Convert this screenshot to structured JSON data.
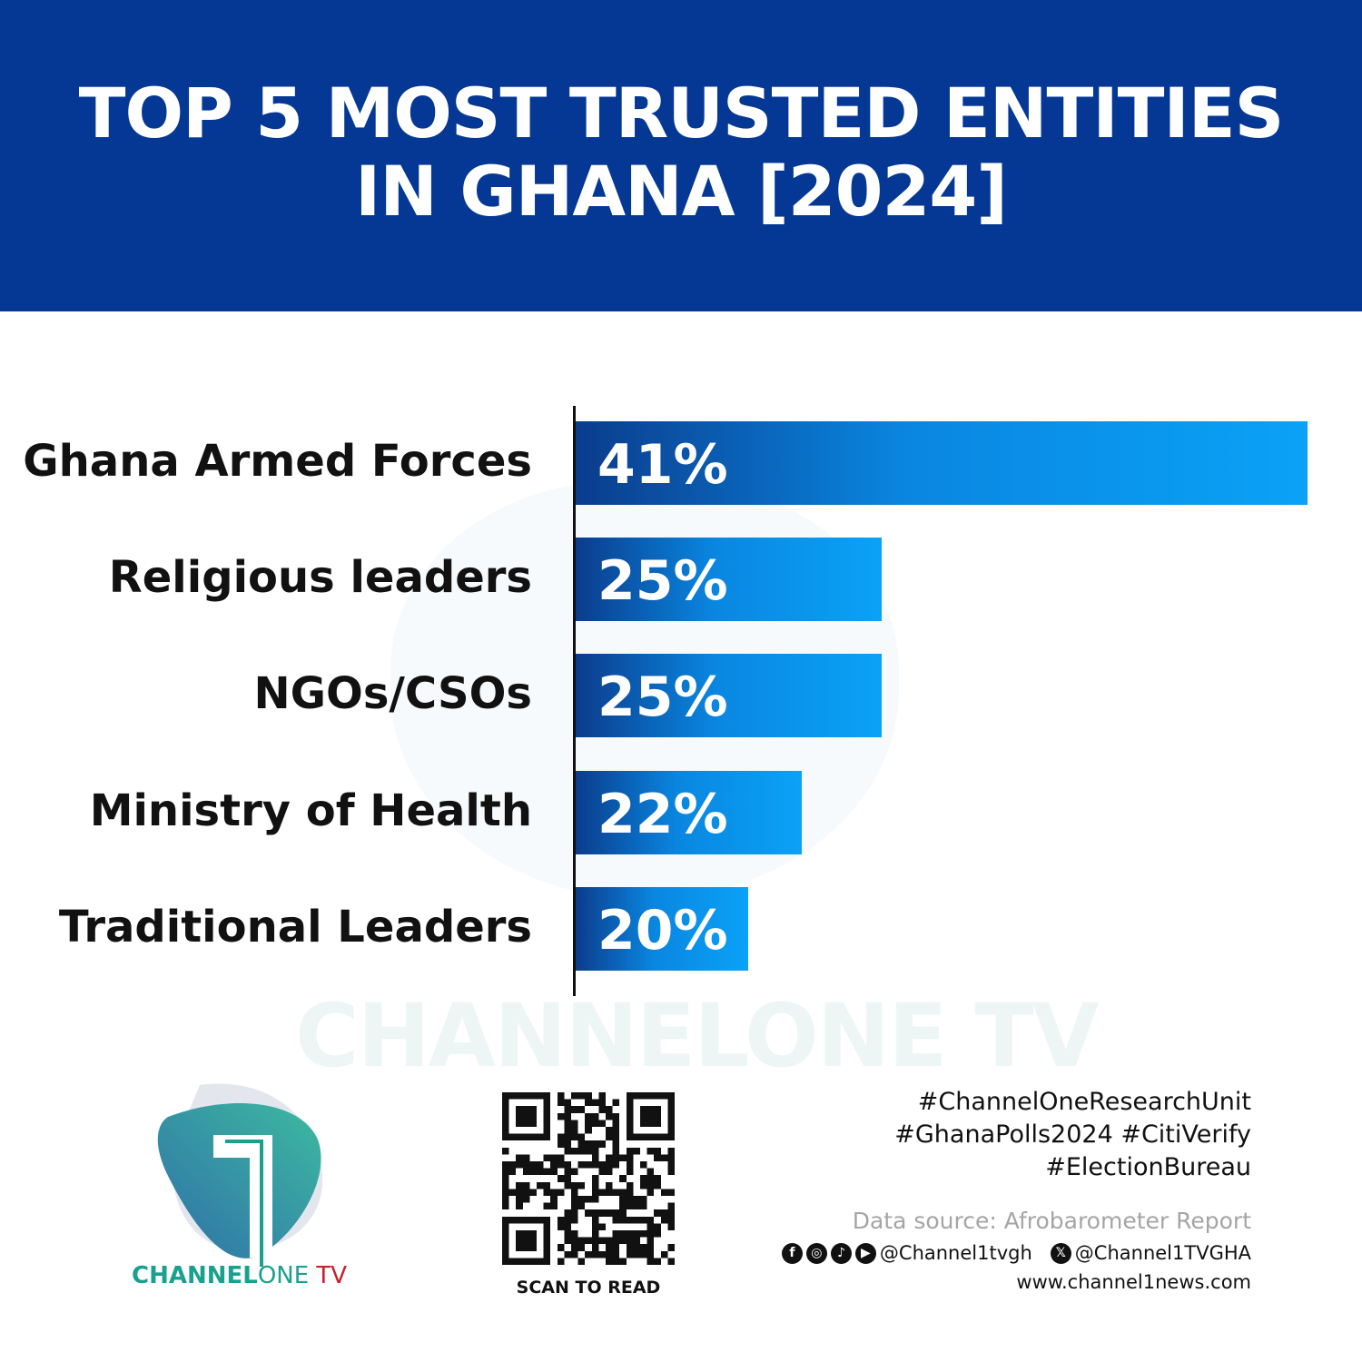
{
  "header": {
    "title": "TOP 5 MOST TRUSTED ENTITIES IN GHANA [2024]",
    "background": "#053894"
  },
  "chart_data": {
    "type": "bar",
    "orientation": "horizontal",
    "title": "TOP 5 MOST TRUSTED ENTITIES IN GHANA [2024]",
    "categories": [
      "Ghana Armed Forces",
      "Religious leaders",
      "NGOs/CSOs",
      "Ministry of Health",
      "Traditional Leaders"
    ],
    "values": [
      41,
      25,
      25,
      22,
      20
    ],
    "labels": [
      "41%",
      "25%",
      "25%",
      "22%",
      "20%"
    ],
    "unit": "%",
    "grid": false,
    "bar_colors": [
      "#0b3c8c",
      "#0aa2f7"
    ]
  },
  "watermark": "CHANNELONE TV",
  "logo": {
    "part1": "CHANNEL",
    "part2": "ONE",
    "part3": " TV"
  },
  "qr": {
    "caption": "SCAN TO READ"
  },
  "footer": {
    "hashtags": [
      "#ChannelOneResearchUnit",
      "#GhanaPolls2024 #CitiVerify",
      "#ElectionBureau"
    ],
    "source": "Data source: Afrobarometer Report",
    "social_handle": "@Channel1tvgh",
    "x_handle": "@Channel1TVGHA",
    "website": "www.channel1news.com",
    "icons": [
      "facebook-icon",
      "instagram-icon",
      "tiktok-icon",
      "youtube-icon",
      "x-icon"
    ]
  }
}
